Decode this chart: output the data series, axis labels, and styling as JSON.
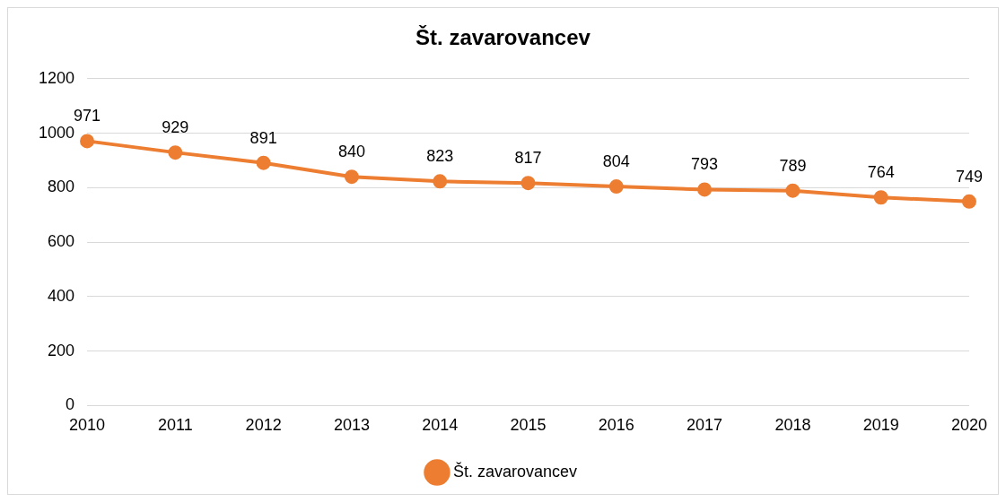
{
  "chart_data": {
    "type": "line",
    "title": "Št. zavarovancev",
    "categories": [
      "2010",
      "2011",
      "2012",
      "2013",
      "2014",
      "2015",
      "2016",
      "2017",
      "2018",
      "2019",
      "2020"
    ],
    "series": [
      {
        "name": "Št. zavarovancev",
        "color": "#ed7d31",
        "values": [
          971,
          929,
          891,
          840,
          823,
          817,
          804,
          793,
          789,
          764,
          749
        ]
      }
    ],
    "ylim": [
      0,
      1200
    ],
    "yticks": [
      0,
      200,
      400,
      600,
      800,
      1000,
      1200
    ],
    "grid": "y",
    "legend": "bottom",
    "marker": "circle",
    "line_style": "solid",
    "data_labels": true
  }
}
